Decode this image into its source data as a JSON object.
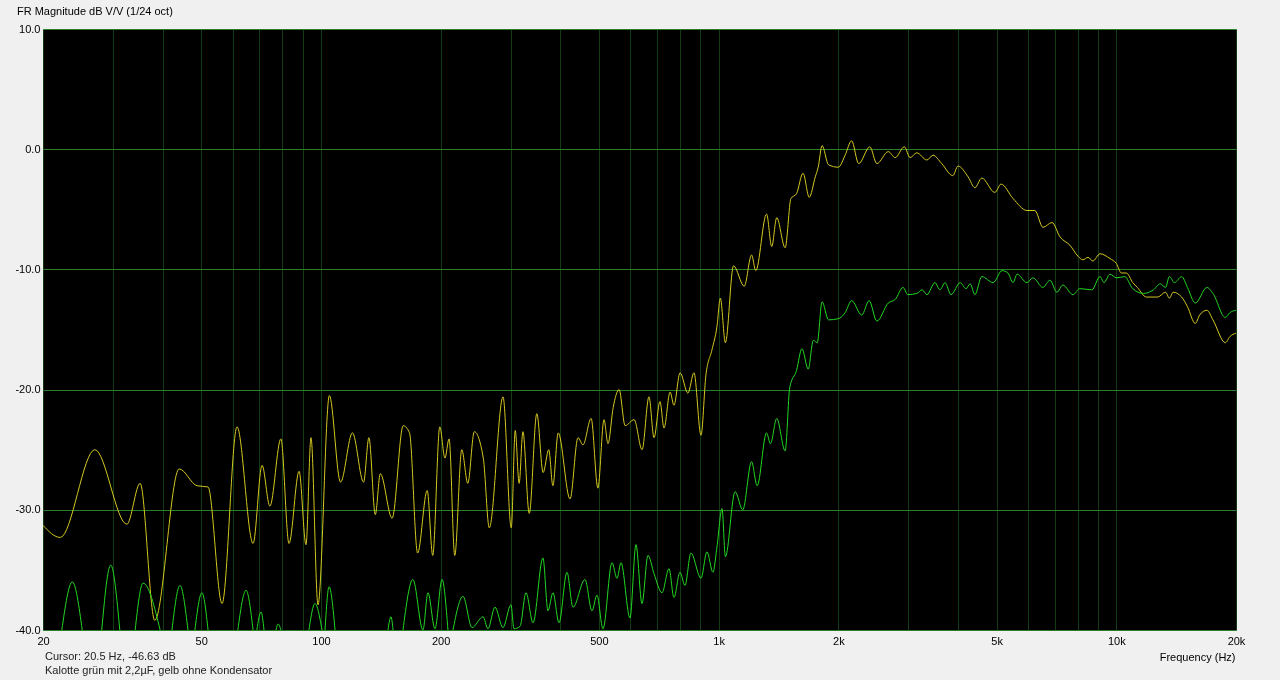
{
  "chart_data": {
    "type": "line",
    "title": "FR Magnitude dB V/V (1/24 oct)",
    "xlabel": "Frequency (Hz)",
    "annotations": [
      "Cursor: 20.5 Hz, -46.63 dB",
      "Kalotte grün mit 2,2µF, gelb ohne Kondensator"
    ],
    "log": "x",
    "grid": true,
    "xlim": [
      20,
      20000
    ],
    "ylim": [
      -40,
      10
    ],
    "xticks": [
      20,
      {
        "value": 30,
        "label": null
      },
      {
        "value": 40,
        "label": null
      },
      50,
      {
        "value": 60,
        "label": null
      },
      {
        "value": 70,
        "label": null
      },
      {
        "value": 80,
        "label": null
      },
      {
        "value": 90,
        "label": null
      },
      100,
      200,
      {
        "value": 300,
        "label": null
      },
      {
        "value": 400,
        "label": null
      },
      500,
      {
        "value": 600,
        "label": null
      },
      {
        "value": 700,
        "label": null
      },
      {
        "value": 800,
        "label": null
      },
      {
        "value": 900,
        "label": null
      },
      {
        "value": 1000,
        "label": "1k"
      },
      {
        "value": 2000,
        "label": "2k"
      },
      {
        "value": 3000,
        "label": null
      },
      {
        "value": 4000,
        "label": null
      },
      {
        "value": 5000,
        "label": "5k"
      },
      {
        "value": 6000,
        "label": null
      },
      {
        "value": 7000,
        "label": null
      },
      {
        "value": 8000,
        "label": null
      },
      {
        "value": 9000,
        "label": null
      },
      {
        "value": 10000,
        "label": "10k"
      },
      {
        "value": 20000,
        "label": "20k"
      }
    ],
    "yticks": [
      {
        "value": -40,
        "label": "-40.0"
      },
      {
        "value": -30,
        "label": "-30.0"
      },
      {
        "value": -20,
        "label": "-20.0"
      },
      {
        "value": -10,
        "label": "-10.0"
      },
      {
        "value": 0,
        "label": "0.0"
      },
      {
        "value": 10,
        "label": "10.0"
      }
    ],
    "series": [
      {
        "color": "#d4c820",
        "x": [
          20,
          22.1,
          27.0,
          32.5,
          35.1,
          38.2,
          44.0,
          48.8,
          52.0,
          56.4,
          61.5,
          67.5,
          71.1,
          74.4,
          79.3,
          83.1,
          88.1,
          91.7,
          94.4,
          98.3,
          105,
          112,
          120,
          128,
          132,
          137,
          141,
          151,
          161,
          167,
          175,
          185,
          191,
          199,
          205,
          210,
          217,
          226,
          234,
          243,
          256,
          265,
          287,
          301,
          308,
          315,
          322,
          334,
          349,
          362,
          374,
          383,
          395,
          423,
          443,
          456,
          478,
          497,
          515,
          527,
          543,
          562,
          582,
          613,
          642,
          668,
          688,
          712,
          729,
          755,
          772,
          800,
          837,
          867,
          903,
          929,
          962,
          990,
          1010,
          1040,
          1090,
          1160,
          1210,
          1240,
          1320,
          1360,
          1400,
          1470,
          1520,
          1570,
          1630,
          1690,
          1750,
          1780,
          1820,
          1890,
          2000,
          2080,
          2160,
          2250,
          2400,
          2500,
          2670,
          2780,
          2930,
          3030,
          3150,
          3340,
          3460,
          3640,
          3880,
          4000,
          4240,
          4410,
          4590,
          4950,
          5130,
          5500,
          5960,
          6240,
          6540,
          6890,
          7220,
          7650,
          8010,
          8240,
          8490,
          8730,
          9100,
          9640,
          10000,
          10300,
          10600,
          11000,
          11300,
          11900,
          12700,
          13300,
          13600,
          13900,
          14600,
          15100,
          15800,
          16200,
          16900,
          17500,
          18800,
          19300,
          20000
        ],
        "values": [
          -31.3,
          -32.3,
          -25.0,
          -31.2,
          -27.8,
          -39.2,
          -26.6,
          -28.0,
          -28.1,
          -37.8,
          -23.1,
          -32.8,
          -26.3,
          -29.7,
          -24.1,
          -32.8,
          -26.8,
          -32.9,
          -24.0,
          -37.9,
          -20.5,
          -27.7,
          -23.6,
          -27.7,
          -24.0,
          -30.4,
          -27.0,
          -30.7,
          -23.0,
          -23.6,
          -33.6,
          -28.4,
          -33.8,
          -23.1,
          -25.7,
          -24.1,
          -33.8,
          -25.0,
          -27.8,
          -23.5,
          -25.7,
          -31.5,
          -20.6,
          -31.5,
          -23.4,
          -27.8,
          -23.5,
          -30.3,
          -22.0,
          -26.9,
          -25.0,
          -28.0,
          -23.6,
          -29.1,
          -24.0,
          -24.6,
          -22.4,
          -28.2,
          -22.5,
          -24.5,
          -21.5,
          -20.0,
          -23.0,
          -22.5,
          -25.0,
          -20.6,
          -24.0,
          -21.0,
          -23.2,
          -20.2,
          -21.3,
          -18.6,
          -20.3,
          -18.6,
          -23.8,
          -18.8,
          -16.7,
          -14.8,
          -12.4,
          -16.1,
          -9.7,
          -11.4,
          -8.8,
          -10.1,
          -5.4,
          -8.1,
          -5.7,
          -8.2,
          -4.1,
          -3.7,
          -2.0,
          -4.0,
          -2.3,
          -1.5,
          0.3,
          -1.3,
          -1.5,
          -0.5,
          0.7,
          -1.2,
          0.2,
          -1.2,
          -0.2,
          -0.7,
          0.2,
          -0.7,
          -0.3,
          -0.9,
          -0.5,
          -1.2,
          -2.2,
          -1.4,
          -2.3,
          -3.2,
          -2.4,
          -3.6,
          -2.9,
          -4.1,
          -5.1,
          -5.1,
          -6.5,
          -6.1,
          -7.3,
          -8.0,
          -8.9,
          -9.2,
          -9.0,
          -9.3,
          -8.7,
          -9.1,
          -9.5,
          -10.3,
          -10.3,
          -11.1,
          -11.5,
          -12.3,
          -12.3,
          -11.9,
          -12.4,
          -11.9,
          -12.3,
          -13.1,
          -14.5,
          -13.8,
          -13.4,
          -14.2,
          -16.1,
          -15.6,
          -15.3
        ]
      },
      {
        "color": "#22d822",
        "x": [
          22.3,
          23.7,
          25.1,
          26.5,
          28.1,
          29.6,
          31.2,
          32.6,
          34.1,
          35.7,
          39.4,
          40.8,
          42.2,
          44.2,
          46.3,
          47.2,
          48.2,
          50.2,
          52.0,
          57.0,
          61.8,
          64.8,
          67.5,
          68.2,
          69.0,
          70.7,
          71.9,
          74.5,
          77.1,
          78.0,
          79.3,
          86.0,
          93.3,
          96.6,
          100.6,
          101.5,
          102.4,
          104.8,
          108.5,
          128,
          147.4,
          150.0,
          151.8,
          156,
          160.8,
          170.3,
          180.5,
          185.8,
          193.5,
          201.6,
          208.6,
          211.7,
          214.8,
          227.6,
          239.8,
          255.6,
          263.0,
          273.9,
          286.9,
          300.5,
          305.8,
          316.6,
          327.8,
          341.4,
          361.6,
          372.3,
          383.2,
          396.8,
          415.6,
          430.3,
          461.3,
          480.3,
          494.4,
          511.9,
          539.4,
          555.2,
          568.2,
          598.5,
          619.7,
          641.6,
          664.3,
          687.8,
          720.4,
          750.2,
          772.2,
          799.5,
          822.9,
          851.9,
          902.8,
          934.7,
          967.8,
          990.4,
          1020,
          1040,
          1100,
          1150,
          1210,
          1250,
          1320,
          1350,
          1400,
          1470,
          1510,
          1570,
          1620,
          1680,
          1730,
          1770,
          1820,
          1890,
          2000,
          2080,
          2160,
          2290,
          2390,
          2500,
          2670,
          2780,
          2910,
          2990,
          3150,
          3250,
          3340,
          3500,
          3600,
          3710,
          3840,
          4050,
          4190,
          4290,
          4410,
          4590,
          4900,
          5160,
          5340,
          5500,
          5630,
          5960,
          6170,
          6540,
          6810,
          7090,
          7340,
          7780,
          8100,
          8680,
          9100,
          9310,
          9640,
          10000,
          10500,
          11000,
          11700,
          12400,
          12900,
          13300,
          13600,
          14000,
          14600,
          15100,
          15800,
          16900,
          17500,
          18800,
          19300,
          20000
        ],
        "values": [
          -40,
          -36.0,
          -40,
          null,
          -40,
          -34.6,
          -40,
          null,
          -40,
          -36.1,
          -40,
          null,
          -40,
          -36.3,
          -40,
          null,
          -40,
          -36.9,
          -40,
          null,
          -40,
          -36.7,
          -40,
          null,
          -40,
          -38.5,
          -40,
          null,
          -40,
          -39.5,
          -40,
          null,
          -40,
          -37.8,
          -40,
          null,
          -40,
          -36.4,
          -40,
          null,
          -40,
          -38.9,
          -40,
          null,
          -40,
          -35.8,
          -40,
          -36.9,
          -39.9,
          -35.8,
          -40,
          null,
          -40,
          -37.2,
          -39.8,
          -38.9,
          -39.9,
          -38.1,
          -39.8,
          -37.9,
          -39.9,
          -39.7,
          -36.9,
          -39.4,
          -34.0,
          -38.4,
          -36.9,
          -39.4,
          -35.2,
          -38.1,
          -35.8,
          -38.4,
          -37.1,
          -39.9,
          -34.4,
          -35.7,
          -34.4,
          -39.0,
          -32.9,
          -37.8,
          -33.8,
          -35.3,
          -36.9,
          -34.9,
          -37.3,
          -35.2,
          -36.3,
          -33.6,
          -35.7,
          -33.5,
          -35.2,
          -33.1,
          -29.9,
          -33.9,
          -28.5,
          -30.0,
          -26.0,
          -28.0,
          -23.6,
          -24.5,
          -22.4,
          -25.1,
          -19.8,
          -18.4,
          -16.6,
          -18.3,
          -15.9,
          -16.1,
          -12.7,
          -14.2,
          -14.1,
          -13.6,
          -12.6,
          -13.8,
          -12.6,
          -14.3,
          -12.8,
          -12.5,
          -11.5,
          -12.1,
          -12.0,
          -11.7,
          -12.1,
          -11.1,
          -11.7,
          -11.1,
          -12.1,
          -11.1,
          -11.6,
          -11.2,
          -12.1,
          -10.6,
          -11.1,
          -10.1,
          -10.3,
          -11.1,
          -10.4,
          -11.1,
          -10.7,
          -11.5,
          -10.9,
          -11.9,
          -11.3,
          -12.1,
          -11.6,
          -11.7,
          -10.6,
          -11.1,
          -10.4,
          -10.7,
          -10.6,
          -11.6,
          -12.0,
          -11.7,
          -11.2,
          -11.5,
          -10.6,
          -11.1,
          -10.6,
          -11.5,
          -12.8,
          -11.5,
          -12.0,
          -14.0,
          -13.6,
          -13.4
        ]
      }
    ]
  }
}
